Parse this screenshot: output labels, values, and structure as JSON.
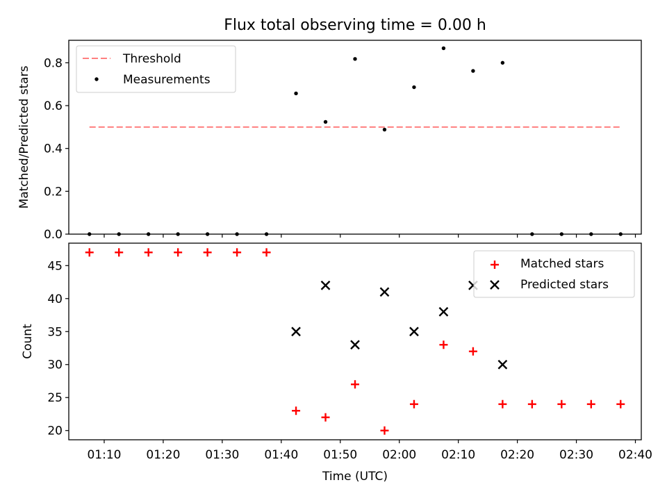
{
  "title": "Flux total observing time = 0.00 h",
  "chart_data": [
    {
      "type": "scatter",
      "ylabel": "Matched/Predicted stars",
      "ylim": [
        0,
        0.905
      ],
      "yticks": [
        "0.0",
        "0.2",
        "0.4",
        "0.6",
        "0.8"
      ],
      "ytick_values": [
        0,
        0.2,
        0.4,
        0.6,
        0.8
      ],
      "threshold": {
        "name": "Threshold",
        "value": 0.5,
        "x_start": "01:07:30",
        "x_end": "02:37:30",
        "color": "#ff7f7f"
      },
      "series": [
        {
          "name": "Measurements",
          "color": "#000000",
          "x": [
            "01:07:30",
            "01:12:30",
            "01:17:30",
            "01:22:30",
            "01:27:30",
            "01:32:30",
            "01:37:30",
            "01:42:30",
            "01:47:30",
            "01:52:30",
            "01:57:30",
            "02:02:30",
            "02:07:30",
            "02:12:30",
            "02:17:30",
            "02:22:30",
            "02:27:30",
            "02:32:30",
            "02:37:30"
          ],
          "y": [
            0,
            0,
            0,
            0,
            0,
            0,
            0,
            0.657,
            0.524,
            0.818,
            0.488,
            0.686,
            0.868,
            0.762,
            0.8,
            0,
            0,
            0,
            0
          ]
        }
      ],
      "legend": [
        "Threshold",
        "Measurements"
      ],
      "legend_position": "upper-left"
    },
    {
      "type": "scatter",
      "xlabel": "Time (UTC)",
      "ylabel": "Count",
      "ylim": [
        18.6,
        48.4
      ],
      "yticks": [
        "20",
        "25",
        "30",
        "35",
        "40",
        "45"
      ],
      "ytick_values": [
        20,
        25,
        30,
        35,
        40,
        45
      ],
      "xlim": [
        "01:04:00",
        "02:41:00"
      ],
      "xticks": [
        "01:10",
        "01:20",
        "01:30",
        "01:40",
        "01:50",
        "02:00",
        "02:10",
        "02:20",
        "02:30",
        "02:40"
      ],
      "series": [
        {
          "name": "Matched stars",
          "marker": "plus",
          "color": "#ff0000",
          "x": [
            "01:07:30",
            "01:12:30",
            "01:17:30",
            "01:22:30",
            "01:27:30",
            "01:32:30",
            "01:37:30",
            "01:42:30",
            "01:47:30",
            "01:52:30",
            "01:57:30",
            "02:02:30",
            "02:07:30",
            "02:12:30",
            "02:17:30",
            "02:22:30",
            "02:27:30",
            "02:32:30",
            "02:37:30"
          ],
          "y": [
            47,
            47,
            47,
            47,
            47,
            47,
            47,
            23,
            22,
            27,
            20,
            24,
            33,
            32,
            24,
            24,
            24,
            24,
            24
          ]
        },
        {
          "name": "Predicted stars",
          "marker": "x",
          "color": "#000000",
          "x": [
            "01:42:30",
            "01:47:30",
            "01:52:30",
            "01:57:30",
            "02:02:30",
            "02:07:30",
            "02:12:30",
            "02:17:30"
          ],
          "y": [
            35,
            42,
            33,
            41,
            35,
            38,
            42,
            30
          ]
        }
      ],
      "legend": [
        "Matched stars",
        "Predicted stars"
      ],
      "legend_position": "upper-right"
    }
  ]
}
